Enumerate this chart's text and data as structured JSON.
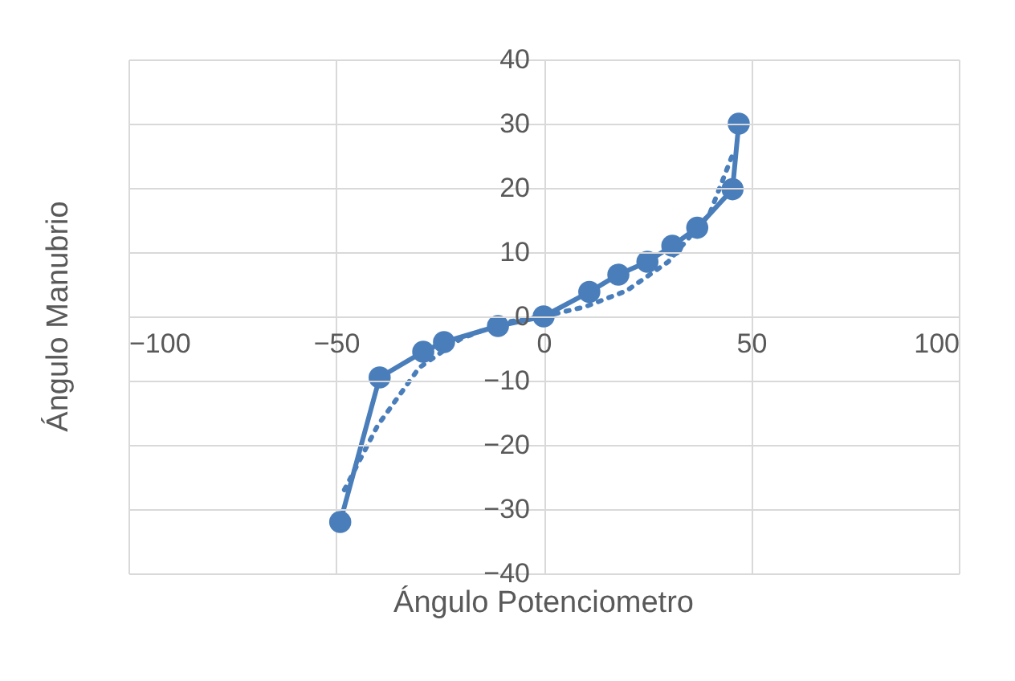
{
  "chart_data": {
    "type": "line",
    "xlabel": "Ángulo Potenciometro",
    "ylabel": "Ángulo Manubrio",
    "xlim": [
      -100,
      100
    ],
    "xticks": [
      -100,
      -50,
      0,
      50,
      100
    ],
    "ylim": [
      -40,
      40
    ],
    "yticks": [
      -40,
      -30,
      -20,
      -10,
      0,
      10,
      20,
      30,
      40
    ],
    "grid": true,
    "series": [
      {
        "color": "#4a7ebb",
        "marker": "circle",
        "line_style": "solid",
        "x": [
          -49,
          -39.5,
          -29,
          -24,
          -11,
          0,
          11,
          18,
          25,
          31,
          37,
          45.5,
          47
        ],
        "values": [
          -32,
          -9.5,
          -5.5,
          -4,
          -1.5,
          0,
          3.8,
          6.5,
          8.5,
          11,
          13.8,
          19.8,
          30
        ]
      },
      {
        "type": "line",
        "color": "#4a7ebb",
        "marker": "none",
        "line_style": "dotted",
        "x": [
          -48,
          -40,
          -30,
          -20,
          -10,
          0,
          10,
          20,
          30,
          40,
          46
        ],
        "values": [
          -27,
          -17,
          -8,
          -3.5,
          -1,
          0,
          1.5,
          4,
          8.5,
          16,
          26
        ]
      }
    ]
  }
}
